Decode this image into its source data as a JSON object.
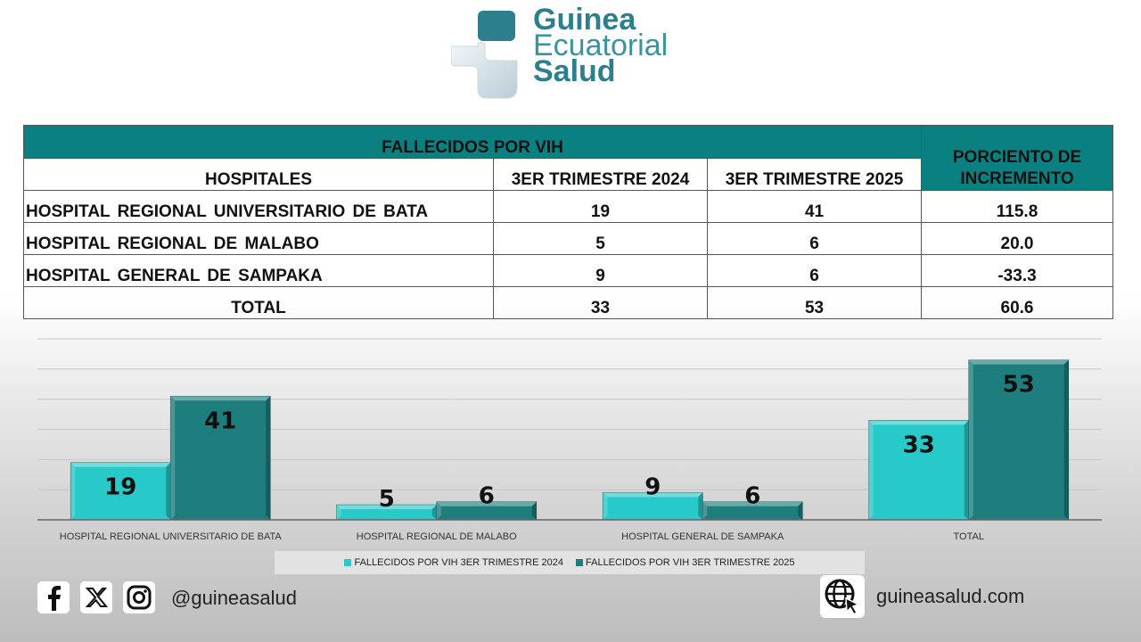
{
  "logo": {
    "line1": "Guinea",
    "line2": "Ecuatorial",
    "line3": "Salud"
  },
  "table": {
    "group_header": "FALLECIDOS POR VIH",
    "col_hospitales": "HOSPITALES",
    "col_2024": "3ER TRIMESTRE 2024",
    "col_2025": "3ER TRIMESTRE 2025",
    "col_pct": "PORCIENTO DE INCREMENTO",
    "rows": [
      {
        "name": "HOSPITAL REGIONAL UNIVERSITARIO DE BATA",
        "v2024": "19",
        "v2025": "41",
        "pct": "115.8"
      },
      {
        "name": "HOSPITAL REGIONAL DE MALABO",
        "v2024": "5",
        "v2025": "6",
        "pct": "20.0"
      },
      {
        "name": "HOSPITAL GENERAL DE SAMPAKA",
        "v2024": "9",
        "v2025": "6",
        "pct": "-33.3"
      },
      {
        "name": "TOTAL",
        "v2024": "33",
        "v2025": "53",
        "pct": "60.6"
      }
    ]
  },
  "chart_data": {
    "type": "bar",
    "categories": [
      "HOSPITAL REGIONAL UNIVERSITARIO DE BATA",
      "HOSPITAL REGIONAL DE MALABO",
      "HOSPITAL GENERAL DE SAMPAKA",
      "TOTAL"
    ],
    "series": [
      {
        "name": "FALLECIDOS POR VIH 3ER TRIMESTRE 2024",
        "values": [
          19,
          5,
          9,
          33
        ],
        "color": "#27c9c9"
      },
      {
        "name": "FALLECIDOS POR VIH 3ER TRIMESTRE 2025",
        "values": [
          41,
          6,
          6,
          53
        ],
        "color": "#1e7d7d"
      }
    ],
    "ylim": [
      0,
      60
    ],
    "grid": true,
    "legend_position": "bottom",
    "data_labels": true
  },
  "footer": {
    "social_icons": [
      "facebook-icon",
      "x-icon",
      "instagram-icon"
    ],
    "handle": "@guineasalud",
    "website": "guineasalud.com"
  },
  "colors": {
    "teal_header": "#0a8080",
    "bar_2024": "#27c9c9",
    "bar_2025": "#1e7d7d"
  }
}
